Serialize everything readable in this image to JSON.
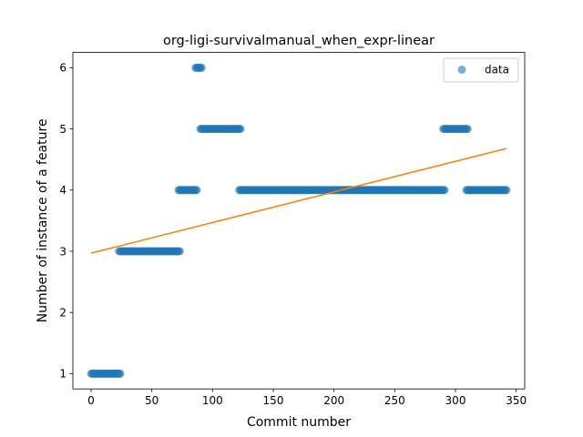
{
  "chart_data": {
    "type": "scatter",
    "title": "org-ligi-survivalmanual_when_expr-linear",
    "xlabel": "Commit number",
    "ylabel": "Number of instance of a feature",
    "xlim": [
      -15,
      357
    ],
    "ylim": [
      0.75,
      6.25
    ],
    "xticks": [
      0,
      50,
      100,
      150,
      200,
      250,
      300,
      350
    ],
    "yticks": [
      1,
      2,
      3,
      4,
      5,
      6
    ],
    "legend": {
      "placement": "top-right",
      "entries": [
        "data"
      ]
    },
    "colors": {
      "data": "#1f77b4",
      "fit": "#ff7f0e"
    },
    "series": [
      {
        "name": "data",
        "kind": "scatter",
        "segments": [
          {
            "x_start": 0,
            "x_end": 24,
            "y": 1
          },
          {
            "x_start": 23,
            "x_end": 73,
            "y": 3
          },
          {
            "x_start": 72,
            "x_end": 87,
            "y": 4
          },
          {
            "x_start": 86,
            "x_end": 91,
            "y": 6
          },
          {
            "x_start": 90,
            "x_end": 123,
            "y": 5
          },
          {
            "x_start": 122,
            "x_end": 291,
            "y": 4
          },
          {
            "x_start": 290,
            "x_end": 310,
            "y": 5
          },
          {
            "x_start": 309,
            "x_end": 342,
            "y": 4
          }
        ]
      },
      {
        "kind": "line",
        "x": [
          0,
          342
        ],
        "y": [
          2.97,
          4.68
        ]
      }
    ]
  }
}
